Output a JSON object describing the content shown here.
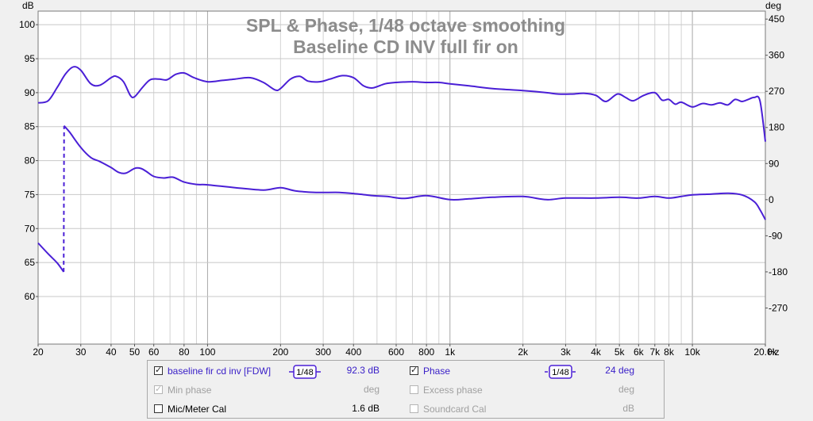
{
  "chart_data": {
    "type": "line",
    "title": "SPL & Phase, 1/48 octave smoothing",
    "subtitle": "Baseline CD INV full fir on",
    "left_axis": {
      "unit": "dB",
      "range": [
        53,
        102
      ],
      "ticks": [
        "100",
        "95",
        "90",
        "85",
        "80",
        "75",
        "70",
        "65",
        "60"
      ]
    },
    "right_axis": {
      "unit": "deg",
      "range": [
        -360,
        470
      ],
      "ticks": [
        "450",
        "360",
        "270",
        "180",
        "90",
        "0",
        "-90",
        "-180",
        "-270"
      ]
    },
    "x_axis": {
      "unit": "Hz",
      "scale": "log",
      "range": [
        20,
        20000
      ],
      "tick_labels": [
        {
          "v": 20,
          "t": "20"
        },
        {
          "v": 30,
          "t": "30"
        },
        {
          "v": 40,
          "t": "40"
        },
        {
          "v": 50,
          "t": "50"
        },
        {
          "v": 60,
          "t": "60"
        },
        {
          "v": 80,
          "t": "80"
        },
        {
          "v": 100,
          "t": "100"
        },
        {
          "v": 200,
          "t": "200"
        },
        {
          "v": 300,
          "t": "300"
        },
        {
          "v": 400,
          "t": "400"
        },
        {
          "v": 600,
          "t": "600"
        },
        {
          "v": 800,
          "t": "800"
        },
        {
          "v": 1000,
          "t": "1k"
        },
        {
          "v": 2000,
          "t": "2k"
        },
        {
          "v": 3000,
          "t": "3k"
        },
        {
          "v": 4000,
          "t": "4k"
        },
        {
          "v": 5000,
          "t": "5k"
        },
        {
          "v": 6000,
          "t": "6k"
        },
        {
          "v": 7000,
          "t": "7k"
        },
        {
          "v": 8000,
          "t": "8k"
        },
        {
          "v": 10000,
          "t": "10k"
        },
        {
          "v": 20000,
          "t": "20.0k"
        }
      ]
    },
    "grid": true,
    "series": [
      {
        "name": "baseline fir cd inv [FDW]",
        "axis": "left",
        "color": "#4a1fd6",
        "points": [
          [
            20,
            88.5
          ],
          [
            22,
            88.8
          ],
          [
            24,
            90.8
          ],
          [
            26,
            92.8
          ],
          [
            28,
            93.8
          ],
          [
            30,
            93.3
          ],
          [
            33,
            91.3
          ],
          [
            36,
            91.1
          ],
          [
            40,
            92.2
          ],
          [
            42,
            92.4
          ],
          [
            45,
            91.6
          ],
          [
            48,
            89.6
          ],
          [
            50,
            89.4
          ],
          [
            54,
            90.8
          ],
          [
            58,
            91.9
          ],
          [
            63,
            92.0
          ],
          [
            68,
            91.9
          ],
          [
            74,
            92.7
          ],
          [
            80,
            92.9
          ],
          [
            88,
            92.2
          ],
          [
            100,
            91.6
          ],
          [
            115,
            91.8
          ],
          [
            130,
            92.0
          ],
          [
            150,
            92.2
          ],
          [
            170,
            91.5
          ],
          [
            190,
            90.4
          ],
          [
            200,
            90.6
          ],
          [
            220,
            92.0
          ],
          [
            240,
            92.4
          ],
          [
            260,
            91.7
          ],
          [
            290,
            91.6
          ],
          [
            320,
            92.0
          ],
          [
            360,
            92.5
          ],
          [
            400,
            92.2
          ],
          [
            440,
            91.0
          ],
          [
            480,
            90.7
          ],
          [
            540,
            91.3
          ],
          [
            600,
            91.5
          ],
          [
            700,
            91.6
          ],
          [
            800,
            91.5
          ],
          [
            900,
            91.5
          ],
          [
            1000,
            91.3
          ],
          [
            1200,
            91.0
          ],
          [
            1500,
            90.6
          ],
          [
            2000,
            90.3
          ],
          [
            2500,
            90.0
          ],
          [
            2800,
            89.8
          ],
          [
            3200,
            89.8
          ],
          [
            3600,
            89.9
          ],
          [
            4000,
            89.6
          ],
          [
            4400,
            88.7
          ],
          [
            4900,
            89.8
          ],
          [
            5300,
            89.3
          ],
          [
            5700,
            88.8
          ],
          [
            6300,
            89.6
          ],
          [
            7000,
            90.0
          ],
          [
            7500,
            88.9
          ],
          [
            8000,
            89.0
          ],
          [
            8500,
            88.3
          ],
          [
            9000,
            88.6
          ],
          [
            10000,
            87.9
          ],
          [
            11000,
            88.4
          ],
          [
            12000,
            88.2
          ],
          [
            13000,
            88.5
          ],
          [
            14000,
            88.2
          ],
          [
            15000,
            89.0
          ],
          [
            16000,
            88.7
          ],
          [
            17000,
            89.0
          ],
          [
            18000,
            89.3
          ],
          [
            19000,
            88.8
          ],
          [
            20000,
            82.8
          ]
        ]
      },
      {
        "name": "Phase",
        "axis": "right",
        "color": "#4a1fd6",
        "points": [
          [
            20,
            -108
          ],
          [
            22,
            -135
          ],
          [
            24,
            -158
          ],
          [
            25.5,
            -180
          ],
          [
            25.6,
            184
          ],
          [
            27,
            168
          ],
          [
            30,
            130
          ],
          [
            33,
            105
          ],
          [
            36,
            95
          ],
          [
            40,
            80
          ],
          [
            43,
            68
          ],
          [
            46,
            66
          ],
          [
            50,
            78
          ],
          [
            53,
            78
          ],
          [
            56,
            70
          ],
          [
            60,
            58
          ],
          [
            66,
            54
          ],
          [
            72,
            56
          ],
          [
            80,
            44
          ],
          [
            90,
            38
          ],
          [
            100,
            37
          ],
          [
            130,
            30
          ],
          [
            170,
            24
          ],
          [
            200,
            30
          ],
          [
            230,
            22
          ],
          [
            280,
            18
          ],
          [
            350,
            18
          ],
          [
            420,
            14
          ],
          [
            480,
            10
          ],
          [
            550,
            8
          ],
          [
            650,
            3
          ],
          [
            800,
            10
          ],
          [
            1000,
            0
          ],
          [
            1200,
            2
          ],
          [
            1500,
            6
          ],
          [
            2000,
            8
          ],
          [
            2500,
            0
          ],
          [
            3000,
            4
          ],
          [
            4000,
            4
          ],
          [
            5000,
            6
          ],
          [
            6000,
            4
          ],
          [
            7000,
            8
          ],
          [
            8000,
            4
          ],
          [
            9000,
            8
          ],
          [
            10000,
            12
          ],
          [
            12000,
            14
          ],
          [
            14000,
            16
          ],
          [
            16000,
            12
          ],
          [
            18000,
            -5
          ],
          [
            19000,
            -25
          ],
          [
            20000,
            -50
          ]
        ]
      }
    ]
  },
  "legend": {
    "row1": {
      "checked": true,
      "label": "baseline fir cd inv [FDW]",
      "smoothing": "1/48",
      "value": "92.3 dB",
      "phase_checked": true,
      "phase_label": "Phase",
      "phase_smoothing": "1/48",
      "phase_value": "24 deg"
    },
    "row2": {
      "min_phase_label": "Min phase",
      "min_phase_unit": "deg",
      "excess_phase_label": "Excess phase",
      "excess_phase_unit": "deg"
    },
    "row3": {
      "mic_label": "Mic/Meter Cal",
      "mic_value": "1.6 dB",
      "soundcard_label": "Soundcard Cal",
      "soundcard_unit": "dB"
    }
  }
}
